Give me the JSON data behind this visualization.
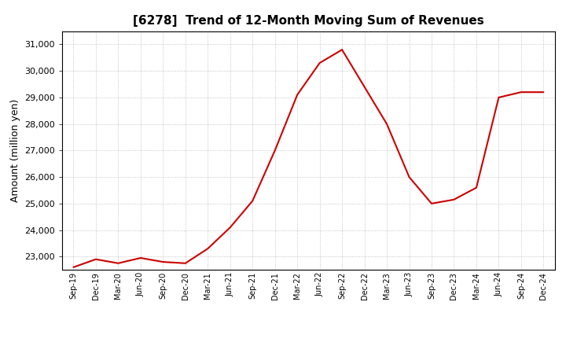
{
  "title": "[6278]  Trend of 12-Month Moving Sum of Revenues",
  "ylabel": "Amount (million yen)",
  "line_color": "#cc0000",
  "background_color": "#ffffff",
  "plot_bg_color": "#ffffff",
  "grid_color": "#999999",
  "ylim": [
    22500,
    31500
  ],
  "yticks": [
    23000,
    24000,
    25000,
    26000,
    27000,
    28000,
    29000,
    30000,
    31000
  ],
  "x_labels": [
    "Sep-19",
    "Dec-19",
    "Mar-20",
    "Jun-20",
    "Sep-20",
    "Dec-20",
    "Mar-21",
    "Jun-21",
    "Sep-21",
    "Dec-21",
    "Mar-22",
    "Jun-22",
    "Sep-22",
    "Dec-22",
    "Mar-23",
    "Jun-23",
    "Sep-23",
    "Dec-23",
    "Mar-24",
    "Jun-24",
    "Sep-24",
    "Dec-24"
  ],
  "values": [
    22600,
    22900,
    22750,
    22950,
    22800,
    22750,
    23300,
    24100,
    25100,
    27000,
    29100,
    30300,
    30800,
    29400,
    28000,
    26000,
    25000,
    25150,
    25600,
    29000,
    29200,
    29200
  ],
  "title_fontsize": 11,
  "ylabel_fontsize": 9,
  "ytick_fontsize": 8,
  "xtick_fontsize": 7
}
